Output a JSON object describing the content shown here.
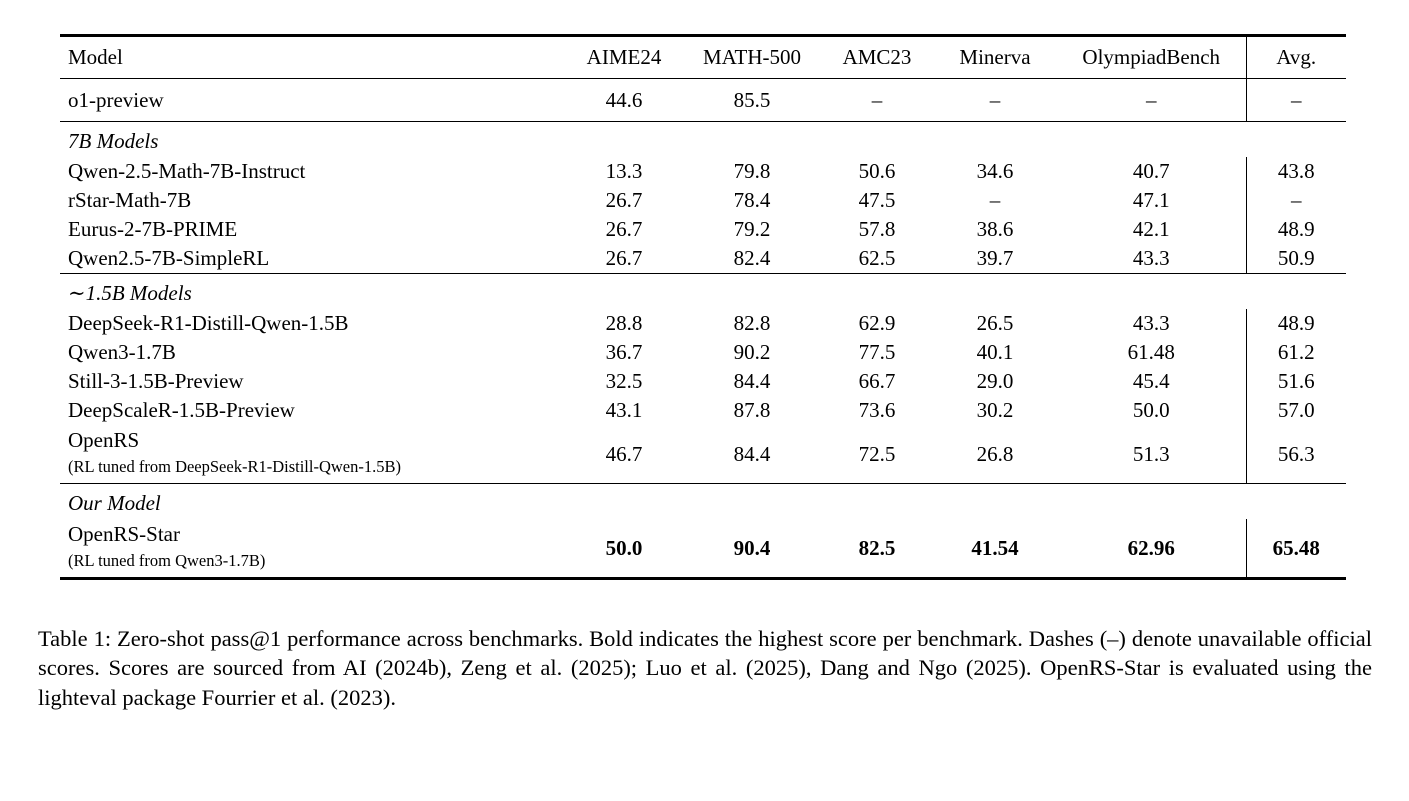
{
  "table": {
    "columns": [
      "Model",
      "AIME24",
      "MATH-500",
      "AMC23",
      "Minerva",
      "OlympiadBench",
      "Avg."
    ],
    "rows": [
      {
        "type": "data",
        "model": "o1-preview",
        "values": [
          "44.6",
          "85.5",
          "–",
          "–",
          "–",
          "–"
        ],
        "rule_after": true
      },
      {
        "type": "section",
        "label": "7B Models"
      },
      {
        "type": "data",
        "model": "Qwen-2.5-Math-7B-Instruct",
        "values": [
          "13.3",
          "79.8",
          "50.6",
          "34.6",
          "40.7",
          "43.8"
        ]
      },
      {
        "type": "data",
        "model": "rStar-Math-7B",
        "values": [
          "26.7",
          "78.4",
          "47.5",
          "–",
          "47.1",
          "–"
        ]
      },
      {
        "type": "data",
        "model": "Eurus-2-7B-PRIME",
        "values": [
          "26.7",
          "79.2",
          "57.8",
          "38.6",
          "42.1",
          "48.9"
        ]
      },
      {
        "type": "data",
        "model": "Qwen2.5-7B-SimpleRL",
        "values": [
          "26.7",
          "82.4",
          "62.5",
          "39.7",
          "43.3",
          "50.9"
        ],
        "rule_after": true
      },
      {
        "type": "section",
        "label": "∼1.5B Models"
      },
      {
        "type": "data",
        "model": "DeepSeek-R1-Distill-Qwen-1.5B",
        "values": [
          "28.8",
          "82.8",
          "62.9",
          "26.5",
          "43.3",
          "48.9"
        ]
      },
      {
        "type": "data",
        "model": "Qwen3-1.7B",
        "values": [
          "36.7",
          "90.2",
          "77.5",
          "40.1",
          "61.48",
          "61.2"
        ]
      },
      {
        "type": "data",
        "model": "Still-3-1.5B-Preview",
        "values": [
          "32.5",
          "84.4",
          "66.7",
          "29.0",
          "45.4",
          "51.6"
        ]
      },
      {
        "type": "data",
        "model": "DeepScaleR-1.5B-Preview",
        "values": [
          "43.1",
          "87.8",
          "73.6",
          "30.2",
          "50.0",
          "57.0"
        ]
      },
      {
        "type": "data",
        "model": "OpenRS",
        "model_sub": "(RL tuned from DeepSeek-R1-Distill-Qwen-1.5B)",
        "values": [
          "46.7",
          "84.4",
          "72.5",
          "26.8",
          "51.3",
          "56.3"
        ],
        "rule_after": true
      },
      {
        "type": "section",
        "label": "Our Model"
      },
      {
        "type": "data",
        "model": "OpenRS-Star",
        "model_sub": "(RL tuned from Qwen3-1.7B)",
        "values": [
          "50.0",
          "90.4",
          "82.5",
          "41.54",
          "62.96",
          "65.48"
        ],
        "bold": true
      }
    ]
  },
  "caption": "Table 1: Zero-shot pass@1 performance across benchmarks. Bold indicates the highest score per benchmark. Dashes (–) denote unavailable official scores. Scores are sourced from AI (2024b), Zeng et al. (2025); Luo et al. (2025), Dang and Ngo (2025). OpenRS-Star is evaluated using the lighteval package Fourrier et al. (2023)."
}
